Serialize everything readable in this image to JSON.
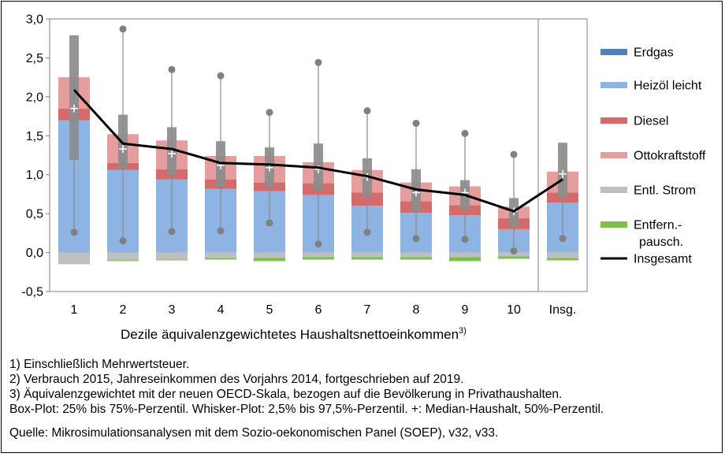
{
  "chart_data": {
    "type": "bar",
    "chart_kind": "stacked bar with box plots and line",
    "title": "",
    "xlabel": "Dezile äquivalenzgewichtetes Haushaltsnettoeinkommen",
    "xlabel_sup": "3)",
    "ylabel": "",
    "ylim": [
      -0.5,
      3.0
    ],
    "yticks": [
      "-0,5",
      "0,0",
      "0,5",
      "1,0",
      "1,5",
      "2,0",
      "2,5",
      "3,0"
    ],
    "yticks_values": [
      -0.5,
      0.0,
      0.5,
      1.0,
      1.5,
      2.0,
      2.5,
      3.0
    ],
    "grid": false,
    "legend_position": "right",
    "categories": [
      "1",
      "2",
      "3",
      "4",
      "5",
      "6",
      "7",
      "8",
      "9",
      "10",
      "Insg."
    ],
    "series": [
      {
        "name": "Erdgas",
        "color": "#4f81bd",
        "values": [
          0,
          0,
          0,
          0,
          0,
          0,
          0,
          0,
          0,
          0,
          0
        ]
      },
      {
        "name": "Heizöl leicht",
        "color": "#8db4e2",
        "values": [
          1.7,
          1.06,
          0.94,
          0.82,
          0.79,
          0.74,
          0.6,
          0.51,
          0.48,
          0.3,
          0.64
        ]
      },
      {
        "name": "Diesel",
        "color": "#d46a6a",
        "values": [
          0.15,
          0.09,
          0.13,
          0.12,
          0.11,
          0.15,
          0.17,
          0.15,
          0.13,
          0.14,
          0.13
        ]
      },
      {
        "name": "Ottokraftstoff",
        "color": "#e59d9d",
        "values": [
          0.4,
          0.37,
          0.37,
          0.3,
          0.34,
          0.27,
          0.29,
          0.24,
          0.24,
          0.15,
          0.27
        ]
      },
      {
        "name": "Entl. Strom",
        "color": "#bfbfbf",
        "values": [
          -0.15,
          -0.1,
          -0.09,
          -0.07,
          -0.07,
          -0.06,
          -0.06,
          -0.06,
          -0.06,
          -0.05,
          -0.07
        ]
      },
      {
        "name": "Entfern.-pausch.",
        "color": "#7dc14a",
        "values": [
          0.0,
          -0.01,
          -0.01,
          -0.02,
          -0.04,
          -0.03,
          -0.03,
          -0.03,
          -0.05,
          -0.03,
          -0.03
        ]
      },
      {
        "name": "Insgesamt",
        "color": "#000000",
        "type": "line",
        "values": [
          2.09,
          1.4,
          1.33,
          1.15,
          1.13,
          1.09,
          0.98,
          0.81,
          0.74,
          0.53,
          0.94
        ]
      }
    ],
    "boxplots": {
      "q25": [
        1.19,
        1.09,
        0.99,
        0.84,
        0.85,
        0.8,
        0.72,
        0.54,
        0.56,
        0.33,
        0.71
      ],
      "q75": [
        2.79,
        1.77,
        1.61,
        1.43,
        1.35,
        1.4,
        1.21,
        1.07,
        0.93,
        0.7,
        1.41
      ],
      "p2_5": [
        0.26,
        0.15,
        0.27,
        0.28,
        0.38,
        0.11,
        0.26,
        0.18,
        0.17,
        0.02,
        0.18
      ],
      "p97_5": [
        2.79,
        2.87,
        2.35,
        2.27,
        1.8,
        2.44,
        1.82,
        1.66,
        1.53,
        1.26,
        1.41
      ],
      "median": [
        1.85,
        1.33,
        1.27,
        1.12,
        1.09,
        1.07,
        0.97,
        0.77,
        0.77,
        0.53,
        1.01
      ]
    }
  },
  "legend": [
    {
      "label": "Erdgas",
      "color": "#4f81bd",
      "kind": "swatch"
    },
    {
      "label": "Heizöl leicht",
      "color": "#8db4e2",
      "kind": "swatch"
    },
    {
      "label": "Diesel",
      "color": "#d46a6a",
      "kind": "swatch"
    },
    {
      "label": "Ottokraftstoff",
      "color": "#e59d9d",
      "kind": "swatch"
    },
    {
      "label": "Entl. Strom",
      "color": "#bfbfbf",
      "kind": "swatch"
    },
    {
      "label": "Entfern.-",
      "label2": "pausch.",
      "color": "#7dc14a",
      "kind": "swatch"
    },
    {
      "label": "Insgesamt",
      "color": "#000000",
      "kind": "line"
    }
  ],
  "notes": [
    "1) Einschließlich Mehrwertsteuer.",
    "2) Verbrauch 2015, Jahreseinkommen des Vorjahrs 2014, fortgeschrieben auf 2019.",
    "3) Äquivalenzgewichtet mit der neuen OECD-Skala, bezogen auf die Bevölkerung in Privathaushalten.",
    "Box-Plot: 25% bis 75%-Perzentil. Whisker-Plot: 2,5% bis 97,5%-Perzentil. +: Median-Haushalt, 50%-Perzentil."
  ],
  "source": "Quelle: Mikrosimulationsanalysen mit dem Sozio-oekonomischen Panel (SOEP), v32, v33."
}
